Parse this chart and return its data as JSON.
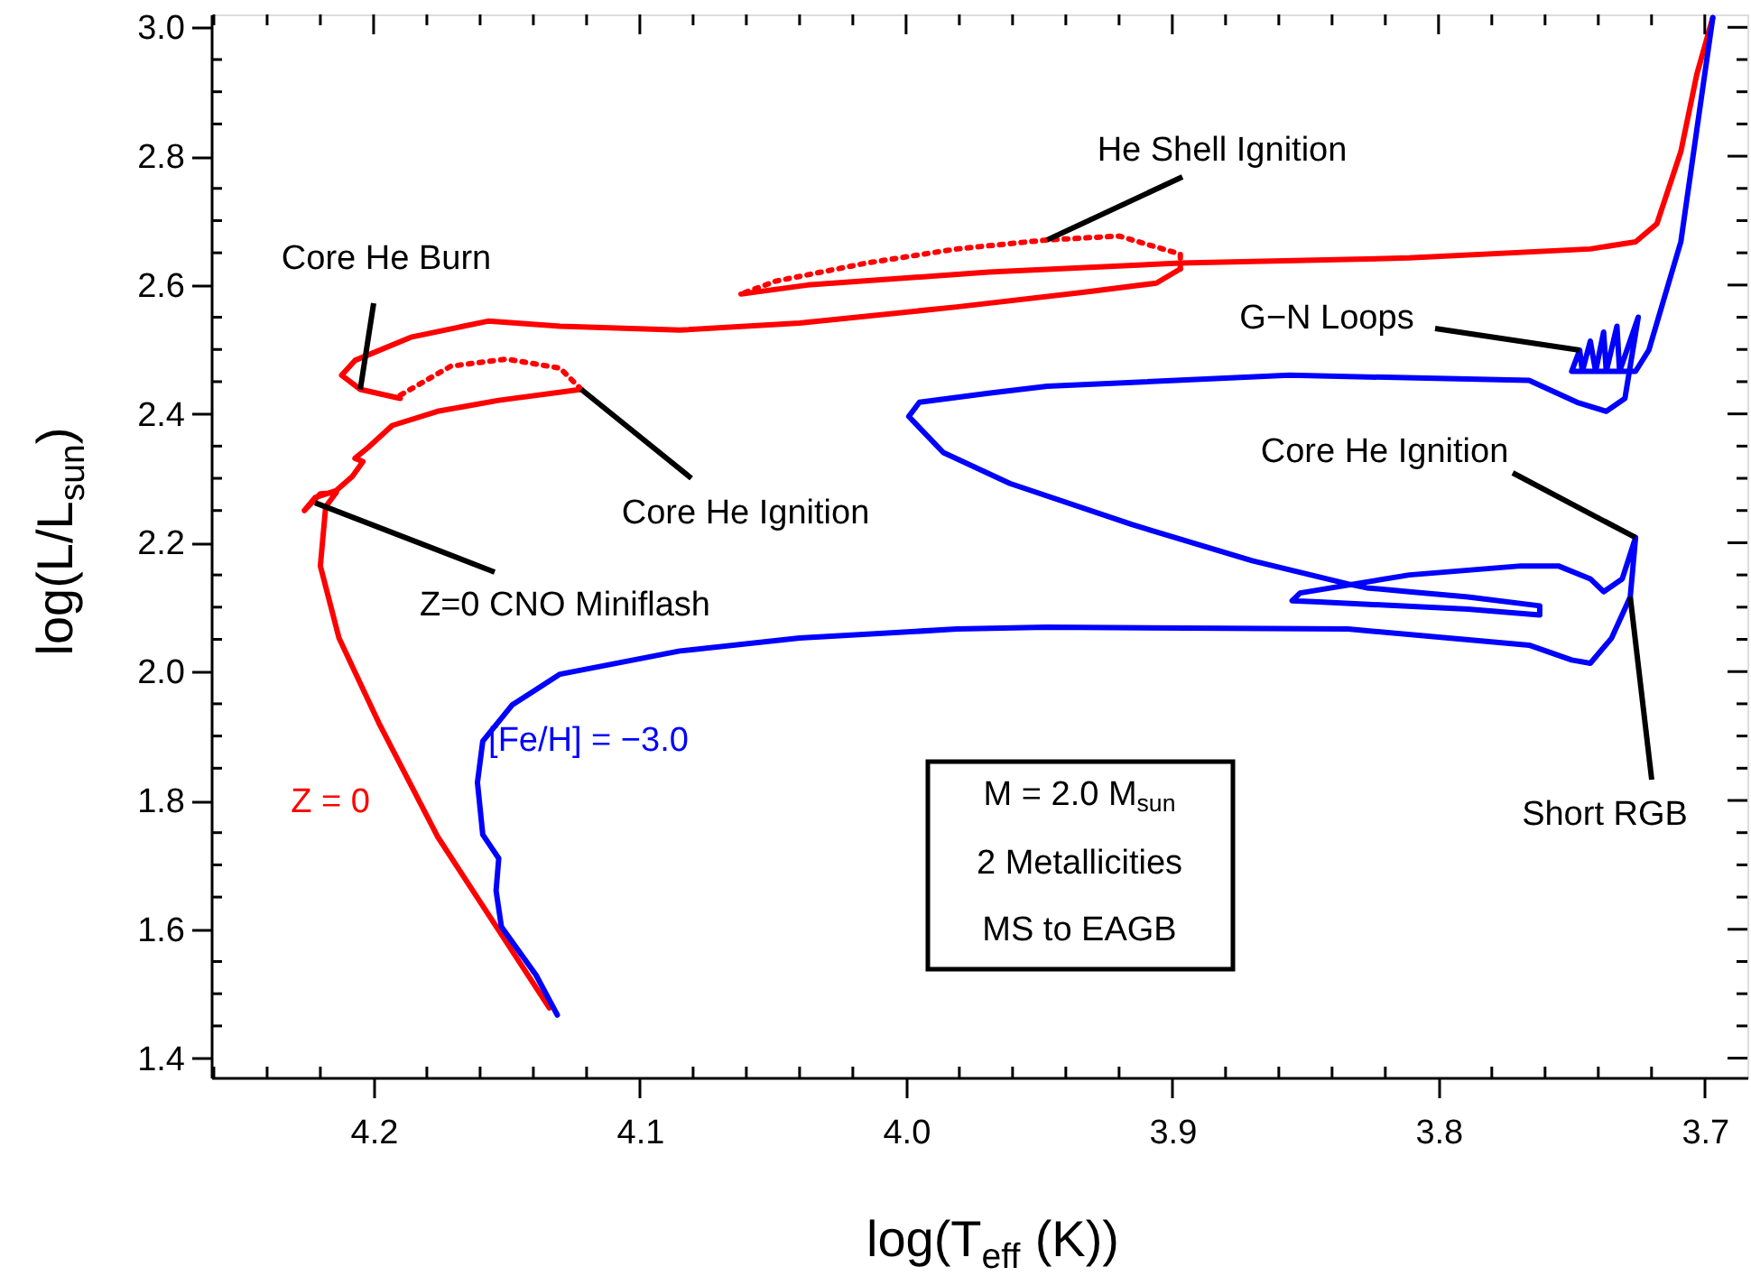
{
  "chart_data": {
    "type": "line",
    "xlabel": "log(T$_{eff}$ (K))",
    "ylabel": "log(L/L$_{sun}$)",
    "xlim": [
      4.261,
      3.684
    ],
    "ylim": [
      1.37,
      3.02
    ],
    "xticks": [
      {
        "value": 4.26,
        "label": null
      },
      {
        "value": 4.24,
        "label": null
      },
      {
        "value": 4.22,
        "label": null
      },
      {
        "value": 4.2,
        "label": "4.2"
      },
      {
        "value": 4.18,
        "label": null
      },
      {
        "value": 4.16,
        "label": null
      },
      {
        "value": 4.14,
        "label": null
      },
      {
        "value": 4.12,
        "label": null
      },
      {
        "value": 4.1,
        "label": "4.1"
      },
      {
        "value": 4.08,
        "label": null
      },
      {
        "value": 4.06,
        "label": null
      },
      {
        "value": 4.04,
        "label": null
      },
      {
        "value": 4.02,
        "label": null
      },
      {
        "value": 4.0,
        "label": "4.0"
      },
      {
        "value": 3.98,
        "label": null
      },
      {
        "value": 3.96,
        "label": null
      },
      {
        "value": 3.94,
        "label": null
      },
      {
        "value": 3.92,
        "label": null
      },
      {
        "value": 3.9,
        "label": "3.9"
      },
      {
        "value": 3.88,
        "label": null
      },
      {
        "value": 3.86,
        "label": null
      },
      {
        "value": 3.84,
        "label": null
      },
      {
        "value": 3.82,
        "label": null
      },
      {
        "value": 3.8,
        "label": "3.8"
      },
      {
        "value": 3.78,
        "label": null
      },
      {
        "value": 3.76,
        "label": null
      },
      {
        "value": 3.74,
        "label": null
      },
      {
        "value": 3.72,
        "label": null
      },
      {
        "value": 3.7,
        "label": "3.7"
      }
    ],
    "yticks": [
      {
        "value": 1.4,
        "label": "1.4"
      },
      {
        "value": 1.45,
        "label": null
      },
      {
        "value": 1.5,
        "label": null
      },
      {
        "value": 1.55,
        "label": null
      },
      {
        "value": 1.6,
        "label": "1.6"
      },
      {
        "value": 1.65,
        "label": null
      },
      {
        "value": 1.7,
        "label": null
      },
      {
        "value": 1.75,
        "label": null
      },
      {
        "value": 1.8,
        "label": "1.8"
      },
      {
        "value": 1.85,
        "label": null
      },
      {
        "value": 1.9,
        "label": null
      },
      {
        "value": 1.95,
        "label": null
      },
      {
        "value": 2.0,
        "label": "2.0"
      },
      {
        "value": 2.05,
        "label": null
      },
      {
        "value": 2.1,
        "label": null
      },
      {
        "value": 2.15,
        "label": null
      },
      {
        "value": 2.2,
        "label": "2.2"
      },
      {
        "value": 2.25,
        "label": null
      },
      {
        "value": 2.3,
        "label": null
      },
      {
        "value": 2.35,
        "label": null
      },
      {
        "value": 2.4,
        "label": "2.4"
      },
      {
        "value": 2.45,
        "label": null
      },
      {
        "value": 2.5,
        "label": null
      },
      {
        "value": 2.55,
        "label": null
      },
      {
        "value": 2.6,
        "label": "2.6"
      },
      {
        "value": 2.65,
        "label": null
      },
      {
        "value": 2.7,
        "label": null
      },
      {
        "value": 2.75,
        "label": null
      },
      {
        "value": 2.8,
        "label": "2.8"
      },
      {
        "value": 2.85,
        "label": null
      },
      {
        "value": 2.9,
        "label": null
      },
      {
        "value": 2.95,
        "label": null
      },
      {
        "value": 3.0,
        "label": "3.0"
      }
    ],
    "grid": false,
    "legend": false,
    "marker": "none",
    "series": [
      {
        "name": "Z = 0",
        "color": "#ff0000",
        "line_style": "solid",
        "x": [
          4.134,
          4.176,
          4.198,
          4.213,
          4.22,
          4.218,
          4.214,
          4.22,
          4.226,
          4.222,
          4.214,
          4.208,
          4.204,
          4.207,
          4.202,
          4.193,
          4.176,
          4.153,
          4.122
        ],
        "values": [
          1.478,
          1.744,
          1.92,
          2.052,
          2.164,
          2.256,
          2.278,
          2.276,
          2.25,
          2.27,
          2.281,
          2.303,
          2.326,
          2.331,
          2.348,
          2.382,
          2.404,
          2.421,
          2.438
        ]
      },
      {
        "color": "#ff0000",
        "line_style": "dotted",
        "x": [
          4.122,
          4.13,
          4.15,
          4.171,
          4.19
        ],
        "values": [
          2.438,
          2.471,
          2.485,
          2.474,
          2.429
        ]
      },
      {
        "color": "#ff0000",
        "line_style": "solid",
        "x": [
          4.19,
          4.205,
          4.212,
          4.207,
          4.186,
          4.157,
          4.13,
          4.085,
          4.04,
          3.981,
          3.933,
          3.906,
          3.897
        ],
        "values": [
          2.424,
          2.438,
          2.46,
          2.483,
          2.519,
          2.544,
          2.536,
          2.53,
          2.541,
          2.566,
          2.589,
          2.603,
          2.625
        ]
      },
      {
        "color": "#ff0000",
        "line_style": "dotted",
        "x": [
          3.897,
          3.897,
          3.92,
          3.947,
          3.981,
          4.015,
          4.049,
          4.062
        ],
        "values": [
          2.625,
          2.648,
          2.676,
          2.67,
          2.656,
          2.634,
          2.606,
          2.586
        ]
      },
      {
        "color": "#ff0000",
        "line_style": "solid",
        "x": [
          4.062,
          4.037,
          3.969,
          3.897,
          3.811,
          3.743,
          3.726,
          3.718,
          3.709,
          3.703,
          3.697
        ],
        "values": [
          2.586,
          2.6,
          2.62,
          2.634,
          2.642,
          2.656,
          2.667,
          2.695,
          2.807,
          2.927,
          3.015
        ]
      },
      {
        "name": "[Fe/H] = −3.0",
        "color": "#0000ff",
        "line_style": "solid",
        "x": [
          4.131,
          4.139,
          4.152,
          4.154,
          4.153,
          4.159,
          4.161,
          4.159,
          4.148,
          4.13,
          4.085,
          4.04,
          3.981,
          3.947,
          3.834,
          3.766,
          3.75,
          3.743,
          3.735,
          3.728,
          3.726,
          3.731,
          3.738,
          3.743,
          3.755,
          3.769,
          3.811,
          3.852,
          3.855,
          3.845,
          3.789,
          3.762,
          3.762,
          3.789,
          3.811,
          3.827,
          3.834,
          3.87,
          3.915,
          3.961,
          3.986,
          3.999,
          3.995,
          3.969,
          3.947,
          3.856,
          3.766,
          3.748,
          3.737,
          3.73,
          3.725,
          3.732,
          3.733,
          3.737,
          3.738,
          3.741,
          3.743,
          3.746,
          3.747,
          3.75,
          3.726,
          3.721,
          3.709,
          3.701,
          3.697
        ],
        "values": [
          1.467,
          1.529,
          1.604,
          1.66,
          1.71,
          1.747,
          1.828,
          1.892,
          1.948,
          1.996,
          2.032,
          2.052,
          2.066,
          2.069,
          2.066,
          2.041,
          2.018,
          2.013,
          2.052,
          2.116,
          2.208,
          2.144,
          2.124,
          2.144,
          2.164,
          2.164,
          2.15,
          2.122,
          2.11,
          2.108,
          2.097,
          2.088,
          2.102,
          2.116,
          2.124,
          2.13,
          2.136,
          2.172,
          2.228,
          2.292,
          2.34,
          2.396,
          2.418,
          2.432,
          2.443,
          2.46,
          2.452,
          2.418,
          2.404,
          2.424,
          2.55,
          2.466,
          2.536,
          2.466,
          2.527,
          2.466,
          2.513,
          2.466,
          2.499,
          2.466,
          2.466,
          2.499,
          2.667,
          2.899,
          3.015
        ]
      }
    ],
    "annotations": [
      {
        "text": "He Shell Ignition",
        "x": 3.947,
        "y": 2.67
      },
      {
        "text": "Core He Burn",
        "x": 4.205,
        "y": 2.438
      },
      {
        "text": "G−N Loops",
        "x": 3.747,
        "y": 2.499
      },
      {
        "text": "Core He Ignition",
        "x": 4.122,
        "y": 2.438
      },
      {
        "text": "Core He Ignition",
        "x": 3.726,
        "y": 2.208
      },
      {
        "text": "Z=0 CNO Miniflash",
        "x": 4.222,
        "y": 2.262
      },
      {
        "text": "Short RGB",
        "x": 3.728,
        "y": 2.116
      },
      "M = 2.0 M$_{sun}$",
      "2 Metallicities",
      "MS to EAGB"
    ]
  }
}
